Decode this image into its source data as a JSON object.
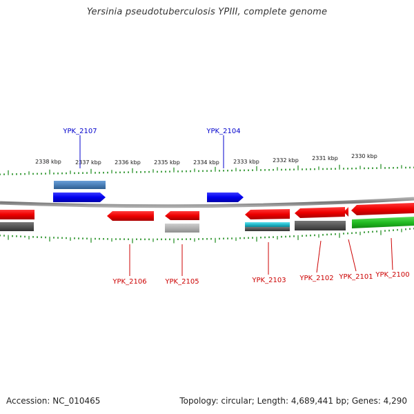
{
  "title": "Yersinia pseudotuberculosis YPIII, complete genome",
  "footer": {
    "accession": "Accession: NC_010465",
    "topology": "Topology: circular; Length: 4,689,441 bp; Genes: 4,290"
  },
  "colors": {
    "forward_gene": "#0000ee",
    "reverse_gene": "#ee0000",
    "tick": "#1a8a1a",
    "backbone": "#888888",
    "feature_dark": "#555555",
    "feature_light": "#b0b0b0",
    "feature_steelblue": "#4a7fb8",
    "feature_cyan": "#20b8c8",
    "feature_green": "#22bb22"
  },
  "scale_labels": [
    "2338 kbp",
    "2337 kbp",
    "2336 kbp",
    "2335 kbp",
    "2334 kbp",
    "2333 kbp",
    "2332 kbp",
    "2331 kbp",
    "2330 kbp"
  ],
  "gene_labels": {
    "forward": [
      "YPK_2107",
      "YPK_2104"
    ],
    "reverse": [
      "YPK_2106",
      "YPK_2105",
      "YPK_2103",
      "YPK_2102",
      "YPK_2101",
      "YPK_2100"
    ]
  }
}
